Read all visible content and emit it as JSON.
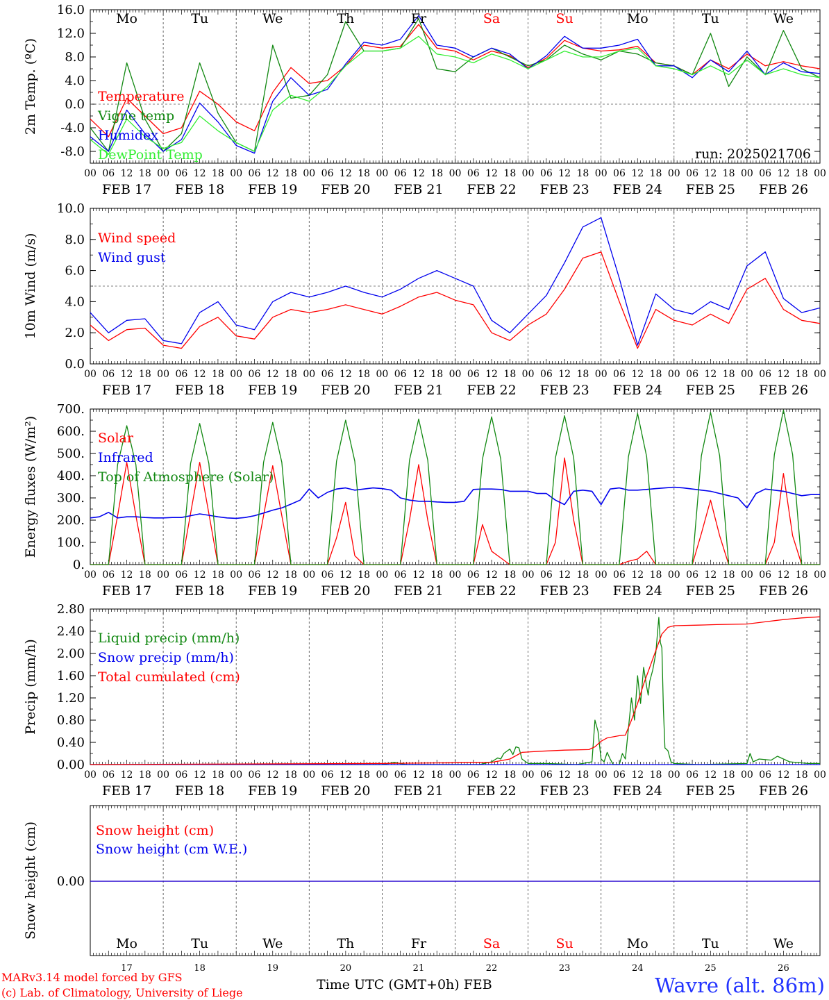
{
  "days": {
    "names": [
      "Mo",
      "Tu",
      "We",
      "Th",
      "Fr",
      "Sa",
      "Su",
      "Mo",
      "Tu",
      "We"
    ],
    "weekend_color": "#ff0000",
    "dates": [
      "FEB 17",
      "FEB 18",
      "FEB 19",
      "FEB 20",
      "FEB 21",
      "FEB 22",
      "FEB 23",
      "FEB 24",
      "FEB 25",
      "FEB 26"
    ],
    "numbers": [
      "17",
      "18",
      "19",
      "20",
      "21",
      "22",
      "23",
      "24",
      "25",
      "26"
    ],
    "hour_ticks": [
      "00",
      "06",
      "12",
      "18"
    ],
    "final_hour": "00"
  },
  "footer": {
    "model": "MARv3.14 model forced by GFS",
    "lab": "(c) Lab. of Climatology, University of Liege",
    "time_axis": "Time UTC (GMT+0h) FEB",
    "station": "Wavre (alt. 86m)"
  },
  "colors": {
    "red": "#ff0000",
    "green": "#118811",
    "blue": "#0000ee",
    "lightgreen": "#33ee33"
  },
  "chart_data": [
    {
      "id": "temperature",
      "type": "line",
      "ylabel": "2m Temp. (ºC)",
      "ylim": [
        -10,
        16
      ],
      "yticks": [
        "16.0",
        "12.0",
        "8.0",
        "4.0",
        "0.0",
        "-4.0",
        "-8.0"
      ],
      "ytick_values": [
        16,
        12,
        8,
        4,
        0,
        -4,
        -8
      ],
      "annotation": "run: 2025021706",
      "x_hours": [
        0,
        6,
        12,
        18,
        24,
        30,
        36,
        42,
        48,
        54,
        60,
        66,
        72,
        78,
        84,
        90,
        96,
        102,
        108,
        114,
        120,
        126,
        132,
        138,
        144,
        150,
        156,
        162,
        168,
        174,
        180,
        186,
        192,
        198,
        204,
        210,
        216,
        222,
        228,
        234,
        240
      ],
      "series": [
        {
          "name": "Temperature",
          "color": "#ff0000",
          "values": [
            -2.5,
            -5.5,
            1.0,
            -2.0,
            -5.0,
            -4.0,
            2.2,
            0.0,
            -3.0,
            -4.5,
            2.0,
            6.2,
            3.5,
            4.0,
            6.5,
            10.0,
            9.5,
            9.8,
            13.5,
            9.5,
            9.0,
            7.5,
            9.0,
            8.2,
            6.2,
            7.8,
            10.8,
            9.5,
            9.0,
            9.2,
            9.8,
            7.0,
            6.5,
            5.0,
            7.5,
            6.0,
            8.5,
            6.5,
            7.2,
            6.5,
            6.0
          ]
        },
        {
          "name": "Vigne temp",
          "color": "#118811",
          "values": [
            -4.0,
            -8.0,
            7.0,
            -2.5,
            -8.0,
            -5.0,
            7.0,
            -1.5,
            -6.5,
            -8.0,
            10.0,
            1.0,
            1.5,
            5.0,
            14.0,
            9.0,
            9.0,
            9.5,
            14.5,
            6.0,
            5.5,
            8.0,
            9.5,
            8.0,
            6.5,
            7.5,
            10.0,
            8.5,
            7.5,
            9.0,
            8.5,
            7.0,
            6.5,
            5.0,
            12.0,
            3.0,
            8.0,
            5.0,
            12.5,
            6.0,
            4.5
          ]
        },
        {
          "name": "Humidex",
          "color": "#0000ee",
          "values": [
            -5.5,
            -8.0,
            -1.0,
            -5.0,
            -8.0,
            -6.0,
            0.2,
            -3.0,
            -7.0,
            -8.3,
            0.5,
            4.5,
            1.5,
            2.5,
            6.8,
            10.5,
            10.0,
            11.0,
            15.0,
            10.0,
            9.5,
            8.0,
            9.5,
            8.5,
            6.0,
            8.2,
            11.5,
            9.5,
            9.5,
            10.0,
            11.0,
            6.5,
            6.5,
            4.5,
            7.5,
            5.5,
            9.0,
            5.0,
            7.0,
            5.5,
            5.2
          ]
        },
        {
          "name": "DewPoint Temp",
          "color": "#33ee33",
          "values": [
            -6.0,
            -8.5,
            -2.5,
            -5.5,
            -7.5,
            -6.5,
            -2.0,
            -4.5,
            -6.5,
            -8.0,
            -1.0,
            1.5,
            0.5,
            3.0,
            6.5,
            9.0,
            9.0,
            9.5,
            11.5,
            8.5,
            8.0,
            7.0,
            8.5,
            7.5,
            6.0,
            7.5,
            9.0,
            8.0,
            8.0,
            9.0,
            9.5,
            6.5,
            6.0,
            5.0,
            6.5,
            5.0,
            7.5,
            5.0,
            6.0,
            5.0,
            4.5
          ]
        }
      ]
    },
    {
      "id": "wind",
      "type": "line",
      "ylabel": "10m Wind (m/s)",
      "ylim": [
        0,
        10
      ],
      "yticks": [
        "10.0",
        "8.0",
        "6.0",
        "4.0",
        "2.0",
        "0.0"
      ],
      "ytick_values": [
        10,
        8,
        6,
        4,
        2,
        0
      ],
      "reference_line": 5,
      "x_hours": [
        0,
        6,
        12,
        18,
        24,
        30,
        36,
        42,
        48,
        54,
        60,
        66,
        72,
        78,
        84,
        90,
        96,
        102,
        108,
        114,
        120,
        126,
        132,
        138,
        144,
        150,
        156,
        162,
        168,
        174,
        180,
        186,
        192,
        198,
        204,
        210,
        216,
        222,
        228,
        234,
        240
      ],
      "series": [
        {
          "name": "Wind speed",
          "color": "#ff0000",
          "values": [
            2.5,
            1.5,
            2.2,
            2.3,
            1.2,
            1.0,
            2.4,
            3.0,
            1.8,
            1.6,
            3.0,
            3.5,
            3.3,
            3.5,
            3.8,
            3.5,
            3.2,
            3.7,
            4.3,
            4.6,
            4.1,
            3.8,
            2.0,
            1.5,
            2.5,
            3.2,
            4.8,
            6.8,
            7.2,
            4.0,
            1.0,
            3.5,
            2.8,
            2.5,
            3.2,
            2.6,
            4.8,
            5.5,
            3.5,
            2.8,
            2.6
          ]
        },
        {
          "name": "Wind gust",
          "color": "#0000ee",
          "values": [
            3.3,
            2.0,
            2.8,
            2.9,
            1.5,
            1.3,
            3.3,
            4.0,
            2.5,
            2.2,
            4.0,
            4.6,
            4.3,
            4.6,
            5.0,
            4.6,
            4.3,
            4.8,
            5.5,
            6.0,
            5.5,
            5.0,
            2.8,
            2.0,
            3.2,
            4.4,
            6.5,
            8.8,
            9.4,
            5.5,
            1.2,
            4.5,
            3.5,
            3.2,
            4.0,
            3.5,
            6.3,
            7.2,
            4.2,
            3.3,
            3.6
          ]
        }
      ]
    },
    {
      "id": "energy",
      "type": "line",
      "ylabel": "Energy fluxes (W/m²)",
      "ylim": [
        0,
        700
      ],
      "yticks": [
        "700.",
        "600.",
        "500.",
        "400.",
        "300.",
        "200.",
        "100.",
        "0."
      ],
      "ytick_values": [
        700,
        600,
        500,
        400,
        300,
        200,
        100,
        0
      ],
      "x_hours": [
        0,
        3,
        6,
        9,
        12,
        15,
        18,
        21,
        24,
        27,
        30,
        33,
        36,
        39,
        42,
        45,
        48,
        51,
        54,
        57,
        60,
        63,
        66,
        69,
        72,
        75,
        78,
        81,
        84,
        87,
        90,
        93,
        96,
        99,
        102,
        105,
        108,
        111,
        114,
        117,
        120,
        123,
        126,
        129,
        132,
        135,
        138,
        141,
        144,
        147,
        150,
        153,
        156,
        159,
        162,
        165,
        168,
        171,
        174,
        177,
        180,
        183,
        186,
        189,
        192,
        195,
        198,
        201,
        204,
        207,
        210,
        213,
        216,
        219,
        222,
        225,
        228,
        231,
        234,
        237,
        240
      ],
      "series": [
        {
          "name": "Solar",
          "color": "#ff0000",
          "values": [
            0,
            0,
            0,
            220,
            460,
            220,
            0,
            0,
            0,
            0,
            0,
            230,
            460,
            230,
            0,
            0,
            0,
            0,
            0,
            220,
            445,
            220,
            0,
            0,
            0,
            0,
            0,
            120,
            280,
            40,
            0,
            0,
            0,
            0,
            0,
            200,
            450,
            200,
            0,
            0,
            0,
            0,
            0,
            180,
            60,
            30,
            0,
            0,
            0,
            0,
            0,
            100,
            480,
            200,
            0,
            0,
            0,
            0,
            0,
            15,
            25,
            60,
            0,
            0,
            0,
            0,
            0,
            140,
            290,
            130,
            0,
            0,
            0,
            0,
            0,
            100,
            410,
            130,
            0,
            0,
            0
          ]
        },
        {
          "name": "Infrared",
          "color": "#0000ee",
          "values": [
            210,
            215,
            235,
            210,
            215,
            215,
            212,
            210,
            210,
            212,
            212,
            220,
            228,
            222,
            215,
            210,
            208,
            212,
            220,
            232,
            245,
            255,
            272,
            290,
            340,
            300,
            325,
            340,
            345,
            335,
            340,
            345,
            342,
            335,
            300,
            290,
            285,
            285,
            282,
            280,
            280,
            285,
            338,
            340,
            340,
            338,
            330,
            330,
            330,
            320,
            320,
            290,
            270,
            330,
            335,
            330,
            270,
            340,
            345,
            335,
            335,
            338,
            342,
            345,
            348,
            345,
            340,
            335,
            330,
            320,
            310,
            300,
            255,
            320,
            340,
            335,
            330,
            320,
            310,
            315,
            315
          ]
        },
        {
          "name": "Top of Atmosphere (Solar)",
          "color": "#118811",
          "values": [
            0,
            0,
            0,
            450,
            625,
            450,
            0,
            0,
            0,
            0,
            0,
            455,
            635,
            455,
            0,
            0,
            0,
            0,
            0,
            460,
            640,
            460,
            0,
            0,
            0,
            0,
            0,
            465,
            650,
            465,
            0,
            0,
            0,
            0,
            0,
            470,
            655,
            470,
            0,
            0,
            0,
            0,
            0,
            475,
            665,
            475,
            0,
            0,
            0,
            0,
            0,
            480,
            670,
            480,
            0,
            0,
            0,
            0,
            0,
            485,
            680,
            485,
            0,
            0,
            0,
            0,
            0,
            490,
            685,
            490,
            0,
            0,
            0,
            0,
            0,
            495,
            695,
            495,
            0,
            0,
            0
          ]
        }
      ]
    },
    {
      "id": "precip",
      "type": "line",
      "ylabel": "Precip (mm/h)",
      "ylim": [
        0,
        2.8
      ],
      "yticks": [
        "2.80",
        "2.40",
        "2.00",
        "1.60",
        "1.20",
        "0.80",
        "0.40",
        "0.00"
      ],
      "ytick_values": [
        2.8,
        2.4,
        2.0,
        1.6,
        1.2,
        0.8,
        0.4,
        0.0
      ],
      "series": [
        {
          "name": "Liquid precip (mm/h)",
          "color": "#118811",
          "x": [
            0,
            96,
            100,
            104,
            108,
            120,
            128,
            132,
            134,
            135,
            136,
            138,
            139,
            140,
            141,
            142,
            144,
            150,
            160,
            165,
            166,
            167,
            168,
            169,
            170,
            171,
            172,
            174,
            175,
            176,
            178,
            179,
            180,
            181,
            182,
            183,
            183.5,
            184,
            185,
            186,
            187,
            187.5,
            188,
            188.5,
            189,
            190,
            191,
            192,
            200,
            216,
            217,
            218,
            220,
            224,
            226,
            228,
            230,
            236,
            240
          ],
          "values": [
            0,
            0,
            0.04,
            0,
            0,
            0,
            0,
            0.05,
            0.12,
            0.1,
            0.2,
            0.28,
            0.18,
            0.32,
            0.3,
            0.1,
            0.02,
            0.02,
            0,
            0.05,
            0.8,
            0.6,
            0.1,
            0.05,
            0.22,
            0.1,
            0,
            0,
            0.2,
            0.1,
            1.2,
            0.8,
            1.6,
            1.1,
            1.75,
            1.4,
            1.25,
            1.5,
            1.7,
            2.0,
            2.65,
            2.2,
            2.1,
            1.0,
            0.3,
            0.25,
            0.05,
            0.02,
            0,
            0.02,
            0.2,
            0.05,
            0.1,
            0.08,
            0.15,
            0.1,
            0.05,
            0.02,
            0.02
          ]
        },
        {
          "name": "Snow precip (mm/h)",
          "color": "#0000ee",
          "x": [
            0,
            240
          ],
          "values": [
            0,
            0
          ]
        },
        {
          "name": "Total cumulated (cm)",
          "color": "#ff0000",
          "x": [
            0,
            96,
            132,
            138,
            142,
            148,
            156,
            164,
            166,
            168,
            170,
            172,
            174,
            176,
            178,
            180,
            182,
            184,
            186,
            188,
            190,
            192,
            200,
            206,
            216,
            222,
            228,
            234,
            240
          ],
          "values": [
            0,
            0.02,
            0.04,
            0.1,
            0.22,
            0.24,
            0.26,
            0.27,
            0.32,
            0.42,
            0.48,
            0.5,
            0.52,
            0.53,
            0.8,
            1.1,
            1.45,
            1.75,
            2.05,
            2.35,
            2.47,
            2.5,
            2.51,
            2.52,
            2.53,
            2.57,
            2.61,
            2.64,
            2.66
          ]
        }
      ]
    },
    {
      "id": "snow",
      "type": "line",
      "ylabel": "Snow height (cm)",
      "yticks": [
        "0.00"
      ],
      "ytick_values": [
        0
      ],
      "series": [
        {
          "name": "Snow height (cm)",
          "color": "#ff0000",
          "x": [
            0,
            240
          ],
          "values": [
            0,
            0
          ]
        },
        {
          "name": "Snow height (cm W.E.)",
          "color": "#0000ee",
          "x": [
            0,
            240
          ],
          "values": [
            0,
            0
          ]
        }
      ]
    }
  ]
}
